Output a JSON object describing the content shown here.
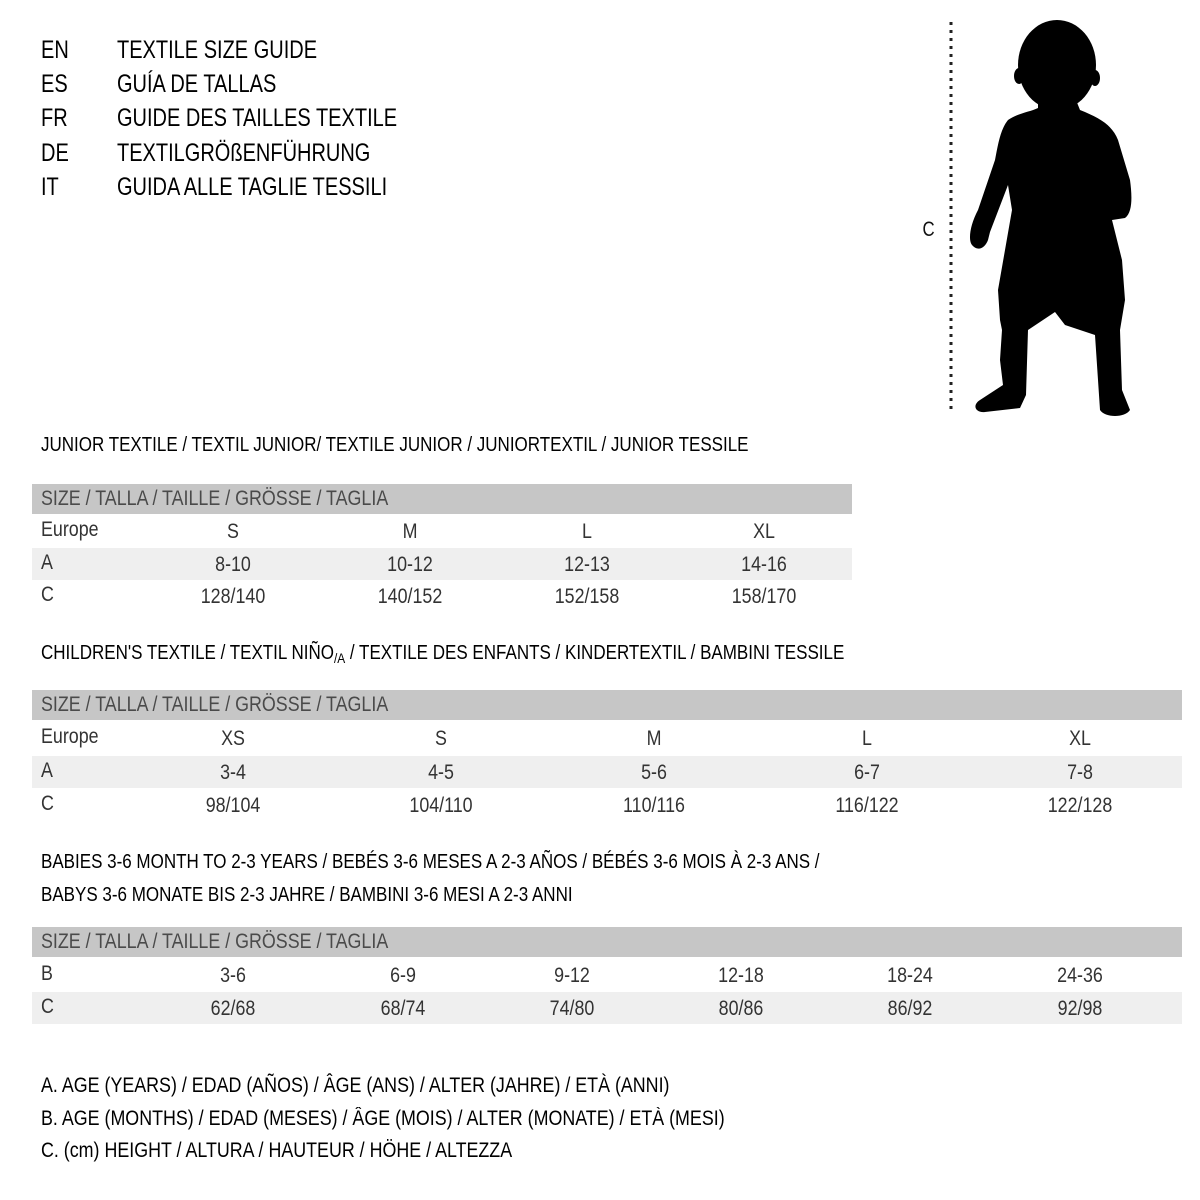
{
  "title_rows": [
    {
      "code": "EN",
      "text": "TEXTILE SIZE GUIDE"
    },
    {
      "code": "ES",
      "text": "GUÍA DE TALLAS"
    },
    {
      "code": "FR",
      "text": "GUIDE DES TAILLES TEXTILE"
    },
    {
      "code": "DE",
      "text": "TEXTILGRÖßENFÜHRUNG"
    },
    {
      "code": "IT",
      "text": "GUIDA ALLE TAGLIE TESSILI"
    }
  ],
  "figure": {
    "measure_label": "C",
    "icon": "child-silhouette-icon"
  },
  "sections": [
    {
      "heading": [
        {
          "pre": "JUNIOR TEXTILE / TEXTIL JUNIOR/ TEXTILE JUNIOR / JUNIORTEXTIL / JUNIOR TESSILE",
          "sub": "",
          "post": ""
        }
      ],
      "header": "SIZE / TALLA / TAILLE / GRÖSSE / TAGLIA",
      "rows": [
        {
          "label": "Europe",
          "values": [
            "S",
            "M",
            "L",
            "XL"
          ]
        },
        {
          "label": "A",
          "values": [
            "8-10",
            "10-12",
            "12-13",
            "14-16"
          ]
        },
        {
          "label": "C",
          "values": [
            "128/140",
            "140/152",
            "152/158",
            "158/170"
          ]
        }
      ]
    },
    {
      "heading": [
        {
          "pre": "CHILDREN'S TEXTILE / TEXTIL NIÑO",
          "sub": "/A",
          "post": " / TEXTILE DES ENFANTS / KINDERTEXTIL / BAMBINI TESSILE"
        }
      ],
      "header": "SIZE / TALLA / TAILLE / GRÖSSE / TAGLIA",
      "rows": [
        {
          "label": "Europe",
          "values": [
            "XS",
            "S",
            "M",
            "L",
            "XL"
          ]
        },
        {
          "label": "A",
          "values": [
            "3-4",
            "4-5",
            "5-6",
            "6-7",
            "7-8"
          ]
        },
        {
          "label": "C",
          "values": [
            "98/104",
            "104/110",
            "110/116",
            "116/122",
            "122/128"
          ]
        }
      ]
    },
    {
      "heading": [
        {
          "pre": "BABIES 3-6 MONTH TO 2-3 YEARS / BEBÉS 3-6 MESES A 2-3 AÑOS / BÉBÉS 3-6 MOIS À 2-3 ANS /",
          "sub": "",
          "post": ""
        },
        {
          "pre": "BABYS 3-6 MONATE BIS 2-3 JAHRE / BAMBINI 3-6 MESI A 2-3 ANNI",
          "sub": "",
          "post": ""
        }
      ],
      "header": "SIZE / TALLA / TAILLE / GRÖSSE / TAGLIA",
      "rows": [
        {
          "label": "B",
          "values": [
            "3-6",
            "6-9",
            "9-12",
            "12-18",
            "18-24",
            "24-36"
          ]
        },
        {
          "label": "C",
          "values": [
            "62/68",
            "68/74",
            "74/80",
            "80/86",
            "86/92",
            "92/98"
          ]
        }
      ]
    }
  ],
  "notes": [
    "A. AGE (YEARS) / EDAD (AÑOS) / ÂGE (ANS) / ALTER (JAHRE) / ETÀ (ANNI)",
    "B. AGE (MONTHS) / EDAD (MESES) / ÂGE (MOIS) / ALTER (MONATE) / ETÀ (MESI)",
    "C. (cm) HEIGHT / ALTURA / HAUTEUR / HÖHE / ALTEZZA"
  ],
  "colors": {
    "header_bar": "#c6c6c6",
    "shaded_row": "#efefef",
    "text": "#111111"
  }
}
